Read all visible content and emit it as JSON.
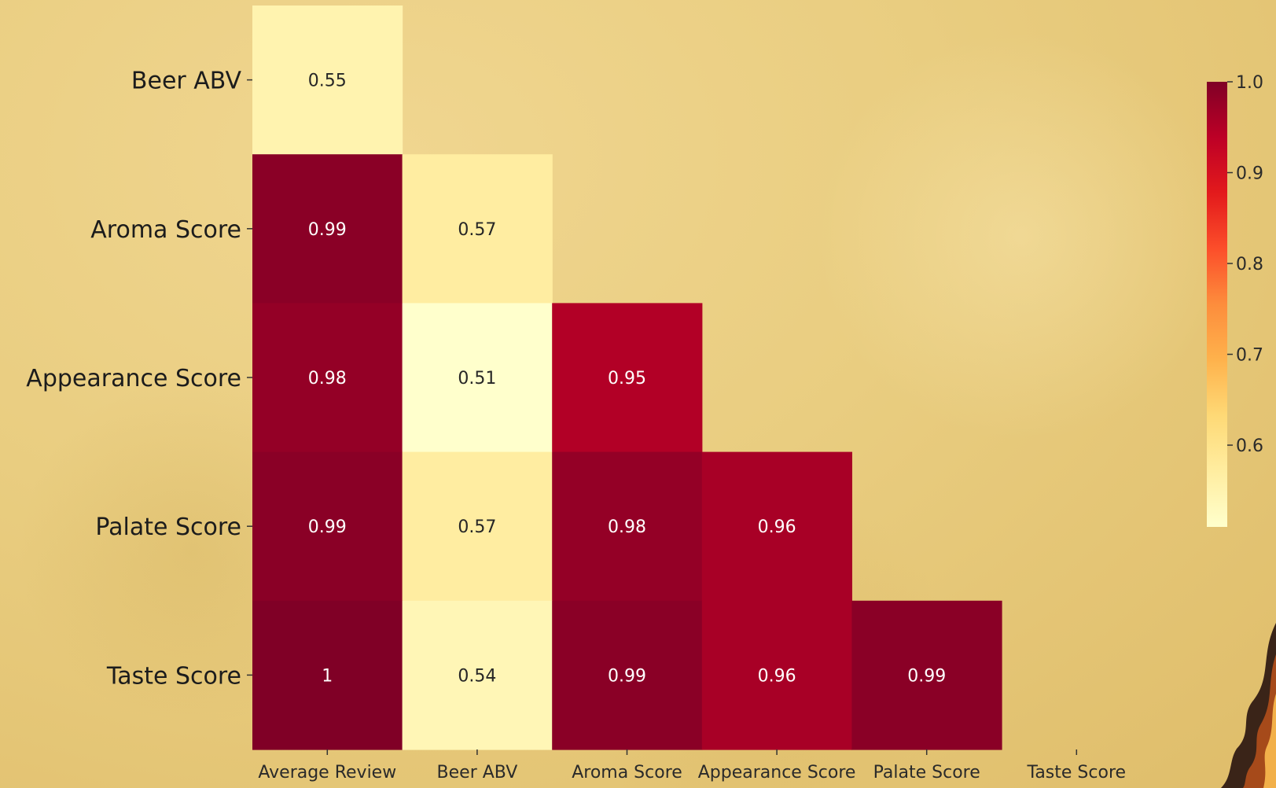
{
  "chart_data": {
    "type": "heatmap",
    "title": "",
    "x_labels": [
      "Average Review",
      "Beer ABV",
      "Aroma Score",
      "Appearance Score",
      "Palate Score",
      "Taste Score"
    ],
    "y_labels": [
      "Beer ABV",
      "Aroma Score",
      "Appearance Score",
      "Palate Score",
      "Taste Score"
    ],
    "values": [
      [
        0.55,
        null,
        null,
        null,
        null,
        null
      ],
      [
        0.99,
        0.57,
        null,
        null,
        null,
        null
      ],
      [
        0.98,
        0.51,
        0.95,
        null,
        null,
        null
      ],
      [
        0.99,
        0.57,
        0.98,
        0.96,
        null,
        null
      ],
      [
        1,
        0.54,
        0.99,
        0.96,
        0.99,
        null
      ]
    ],
    "annotations": [
      [
        "0.55",
        "",
        "",
        "",
        "",
        ""
      ],
      [
        "0.99",
        "0.57",
        "",
        "",
        "",
        ""
      ],
      [
        "0.98",
        "0.51",
        "0.95",
        "",
        "",
        ""
      ],
      [
        "0.99",
        "0.57",
        "0.98",
        "0.96",
        "",
        ""
      ],
      [
        "1",
        "0.54",
        "0.99",
        "0.96",
        "0.99",
        ""
      ]
    ],
    "colorbar": {
      "min": 0.51,
      "max": 1.0,
      "ticks": [
        0.6,
        0.7,
        0.8,
        0.9,
        1.0
      ],
      "tick_labels": [
        "0.6",
        "0.7",
        "0.8",
        "0.9",
        "1.0"
      ],
      "colormap": "YlOrRd",
      "colors": [
        "#ffffcc",
        "#ffeda0",
        "#fed976",
        "#feb24c",
        "#fd8d3c",
        "#fc4e2a",
        "#e31a1c",
        "#bd0026",
        "#800026"
      ]
    },
    "masked": "upper triangle"
  }
}
